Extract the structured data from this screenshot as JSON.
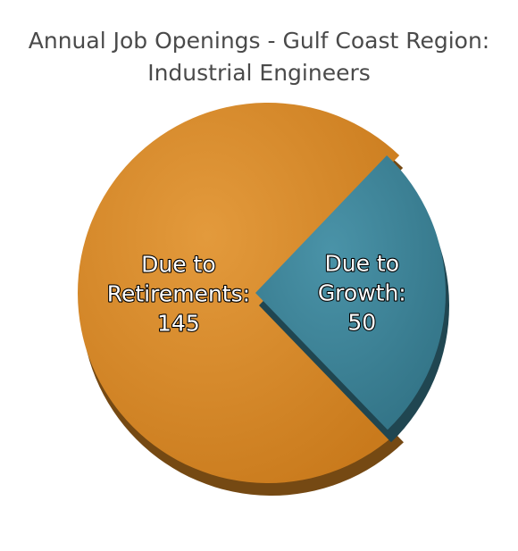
{
  "title_lines": [
    "Annual Job Openings - Gulf Coast Region:",
    "Industrial Engineers"
  ],
  "chart_data": {
    "type": "pie",
    "title": "Annual Job Openings - Gulf Coast Region: Industrial Engineers",
    "slices": [
      {
        "label_lines": [
          "Due to",
          "Retirements:",
          "145"
        ],
        "value": 145,
        "color": "#d48422"
      },
      {
        "label_lines": [
          "Due to",
          "Growth:",
          "50"
        ],
        "value": 50,
        "color": "#3b7f94"
      }
    ]
  }
}
